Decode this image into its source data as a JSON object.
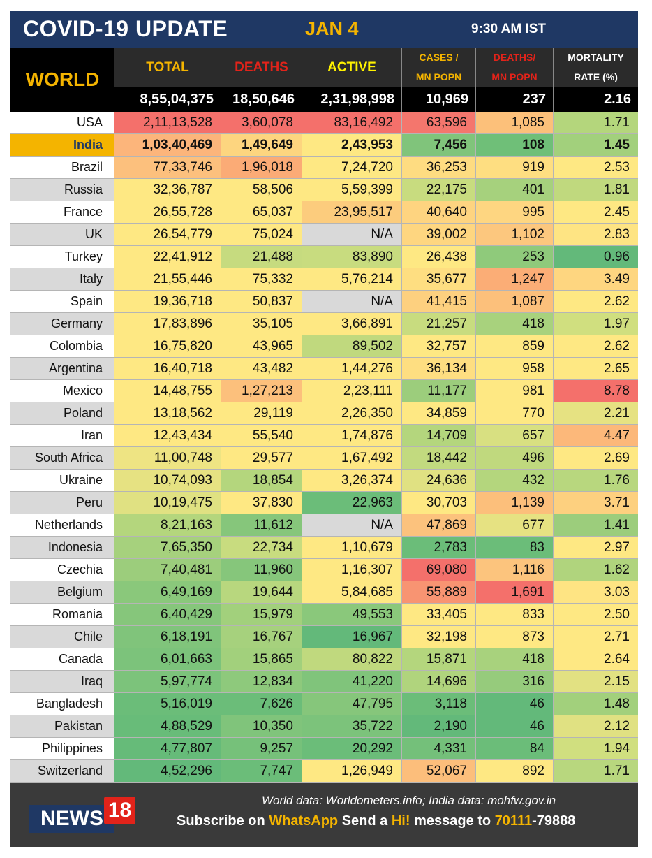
{
  "header": {
    "title": "COVID-19 UPDATE",
    "date": "JAN 4",
    "time": "9:30 AM IST"
  },
  "world": {
    "label": "WORLD",
    "columns": {
      "total": "TOTAL",
      "deaths": "DEATHS",
      "active": "ACTIVE",
      "cases_top": "CASES /",
      "cases_bottom": "MN POPN",
      "deaths_pm_top": "DEATHS/",
      "deaths_pm_bottom": "MN POPN",
      "mortality_top": "MORTALITY",
      "mortality_bottom": "RATE (%)"
    },
    "values": {
      "total": "8,55,04,375",
      "deaths": "18,50,646",
      "active": "2,31,98,998",
      "cases_mn": "10,969",
      "deaths_mn": "237",
      "mortality": "2.16"
    }
  },
  "colors": {
    "title_bg": "#1f3864",
    "accent": "#f4b400",
    "deaths_red": "#e2231a",
    "header_bg": "#000000",
    "footer_bg": "#3a3a3a"
  },
  "rows": [
    {
      "country": "USA",
      "total": "2,11,13,528",
      "deaths": "3,60,078",
      "active": "83,16,492",
      "cases_mn": "63,596",
      "deaths_mn": "1,085",
      "mortality": "1.71",
      "c": [
        "#f4706b",
        "#f4706b",
        "#f4706b",
        "#f4766d",
        "#fcc07a",
        "#b4d67c"
      ]
    },
    {
      "country": "India",
      "total": "1,03,40,469",
      "deaths": "1,49,649",
      "active": "2,43,953",
      "cases_mn": "7,456",
      "deaths_mn": "108",
      "mortality": "1.45",
      "c": [
        "#fcb57b",
        "#fdd57f",
        "#fee883",
        "#80c47b",
        "#6fbf78",
        "#a2d07c"
      ],
      "highlight": true
    },
    {
      "country": "Brazil",
      "total": "77,33,746",
      "deaths": "1,96,018",
      "active": "7,24,720",
      "cases_mn": "36,253",
      "deaths_mn": "919",
      "mortality": "2.53",
      "c": [
        "#fcc07d",
        "#fbab76",
        "#fee883",
        "#fedc81",
        "#fede81",
        "#fee883"
      ]
    },
    {
      "country": "Russia",
      "total": "32,36,787",
      "deaths": "58,506",
      "active": "5,59,399",
      "cases_mn": "22,175",
      "deaths_mn": "401",
      "mortality": "1.81",
      "c": [
        "#fee883",
        "#fee883",
        "#fee883",
        "#c8dc7f",
        "#a6d17d",
        "#c0d97e"
      ]
    },
    {
      "country": "France",
      "total": "26,55,728",
      "deaths": "65,037",
      "active": "23,95,517",
      "cases_mn": "40,640",
      "deaths_mn": "995",
      "mortality": "2.45",
      "c": [
        "#fee883",
        "#fee883",
        "#fccc7d",
        "#fed480",
        "#fed681",
        "#fee883"
      ]
    },
    {
      "country": "UK",
      "total": "26,54,779",
      "deaths": "75,024",
      "active": "N/A",
      "cases_mn": "39,002",
      "deaths_mn": "1,102",
      "mortality": "2.83",
      "c": [
        "#fee883",
        "#fee883",
        "#d9d9d9",
        "#fed680",
        "#fcc77e",
        "#fee483"
      ]
    },
    {
      "country": "Turkey",
      "total": "22,41,912",
      "deaths": "21,488",
      "active": "83,890",
      "cases_mn": "26,438",
      "deaths_mn": "253",
      "mortality": "0.96",
      "c": [
        "#fee883",
        "#c6db7f",
        "#c8dc7f",
        "#fee883",
        "#8fca7b",
        "#63b97a"
      ]
    },
    {
      "country": "Italy",
      "total": "21,55,446",
      "deaths": "75,332",
      "active": "5,76,214",
      "cases_mn": "35,677",
      "deaths_mn": "1,247",
      "mortality": "3.49",
      "c": [
        "#fee883",
        "#fee883",
        "#fee883",
        "#fede81",
        "#fbad76",
        "#fed680"
      ]
    },
    {
      "country": "Spain",
      "total": "19,36,718",
      "deaths": "50,837",
      "active": "N/A",
      "cases_mn": "41,415",
      "deaths_mn": "1,087",
      "mortality": "2.62",
      "c": [
        "#fee883",
        "#fee883",
        "#d9d9d9",
        "#fdd07f",
        "#fcc07b",
        "#fee883"
      ]
    },
    {
      "country": "Germany",
      "total": "17,83,896",
      "deaths": "35,105",
      "active": "3,66,891",
      "cases_mn": "21,257",
      "deaths_mn": "418",
      "mortality": "1.97",
      "c": [
        "#fee883",
        "#fee883",
        "#fee883",
        "#c8dc7f",
        "#a8d27d",
        "#d0df7f"
      ]
    },
    {
      "country": "Colombia",
      "total": "16,75,820",
      "deaths": "43,965",
      "active": "89,502",
      "cases_mn": "32,757",
      "deaths_mn": "859",
      "mortality": "2.62",
      "c": [
        "#fee883",
        "#fee883",
        "#c0d97e",
        "#fee883",
        "#fee883",
        "#fee883"
      ]
    },
    {
      "country": "Argentina",
      "total": "16,40,718",
      "deaths": "43,482",
      "active": "1,44,276",
      "cases_mn": "36,134",
      "deaths_mn": "958",
      "mortality": "2.65",
      "c": [
        "#fee883",
        "#fee883",
        "#fee883",
        "#fede81",
        "#fee883",
        "#fee883"
      ]
    },
    {
      "country": "Mexico",
      "total": "14,48,755",
      "deaths": "1,27,213",
      "active": "2,23,111",
      "cases_mn": "11,177",
      "deaths_mn": "981",
      "mortality": "8.78",
      "c": [
        "#fee883",
        "#fcc07c",
        "#fee883",
        "#9ccd7c",
        "#fee883",
        "#f4706b"
      ]
    },
    {
      "country": "Poland",
      "total": "13,18,562",
      "deaths": "29,119",
      "active": "2,26,350",
      "cases_mn": "34,859",
      "deaths_mn": "770",
      "mortality": "2.21",
      "c": [
        "#fee883",
        "#fee883",
        "#fee883",
        "#fee883",
        "#fee883",
        "#e6e282"
      ]
    },
    {
      "country": "Iran",
      "total": "12,43,434",
      "deaths": "55,540",
      "active": "1,74,876",
      "cases_mn": "14,709",
      "deaths_mn": "657",
      "mortality": "4.47",
      "c": [
        "#fee883",
        "#fee883",
        "#fee883",
        "#b4d67d",
        "#d8e081",
        "#fcb87a"
      ]
    },
    {
      "country": "South Africa",
      "total": "11,00,748",
      "deaths": "29,577",
      "active": "1,67,492",
      "cases_mn": "18,442",
      "deaths_mn": "496",
      "mortality": "2.69",
      "c": [
        "#eee483",
        "#fee883",
        "#fee883",
        "#c2da7f",
        "#c0d97e",
        "#fee883"
      ]
    },
    {
      "country": "Ukraine",
      "total": "10,74,093",
      "deaths": "18,854",
      "active": "3,26,374",
      "cases_mn": "24,636",
      "deaths_mn": "432",
      "mortality": "1.76",
      "c": [
        "#e6e282",
        "#b4d67d",
        "#fee883",
        "#e0e182",
        "#b4d67d",
        "#b8d77e"
      ]
    },
    {
      "country": "Peru",
      "total": "10,19,475",
      "deaths": "37,830",
      "active": "22,963",
      "cases_mn": "30,703",
      "deaths_mn": "1,139",
      "mortality": "3.71",
      "c": [
        "#e0e182",
        "#fee883",
        "#6bbd79",
        "#fee883",
        "#fcbf7b",
        "#fdd07f"
      ]
    },
    {
      "country": "Netherlands",
      "total": "8,21,163",
      "deaths": "11,612",
      "active": "N/A",
      "cases_mn": "47,869",
      "deaths_mn": "677",
      "mortality": "1.41",
      "c": [
        "#b4d67d",
        "#86c67b",
        "#d9d9d9",
        "#fcc27d",
        "#e6e282",
        "#9ccd7c"
      ]
    },
    {
      "country": "Indonesia",
      "total": "7,65,350",
      "deaths": "22,734",
      "active": "1,10,679",
      "cases_mn": "2,783",
      "deaths_mn": "83",
      "mortality": "2.97",
      "c": [
        "#a6d17d",
        "#c8dc7f",
        "#fee883",
        "#6bbd79",
        "#6bbd79",
        "#fee883"
      ]
    },
    {
      "country": "Czechia",
      "total": "7,40,481",
      "deaths": "11,960",
      "active": "1,16,307",
      "cases_mn": "69,080",
      "deaths_mn": "1,116",
      "mortality": "1.62",
      "c": [
        "#9ccd7c",
        "#86c67b",
        "#fee883",
        "#f4706b",
        "#fcc47d",
        "#b0d47d"
      ]
    },
    {
      "country": "Belgium",
      "total": "6,49,169",
      "deaths": "19,644",
      "active": "5,84,685",
      "cases_mn": "55,889",
      "deaths_mn": "1,691",
      "mortality": "3.03",
      "c": [
        "#8ac87b",
        "#b8d77e",
        "#fee883",
        "#f89472",
        "#f4706b",
        "#fee483"
      ]
    },
    {
      "country": "Romania",
      "total": "6,40,429",
      "deaths": "15,979",
      "active": "49,553",
      "cases_mn": "33,405",
      "deaths_mn": "833",
      "mortality": "2.50",
      "c": [
        "#86c67b",
        "#a2d07c",
        "#8ac87b",
        "#fee883",
        "#fee883",
        "#fee883"
      ]
    },
    {
      "country": "Chile",
      "total": "6,18,191",
      "deaths": "16,767",
      "active": "16,967",
      "cases_mn": "32,198",
      "deaths_mn": "873",
      "mortality": "2.71",
      "c": [
        "#80c47b",
        "#a6d17d",
        "#63b97a",
        "#fee883",
        "#fee883",
        "#fee883"
      ]
    },
    {
      "country": "Canada",
      "total": "6,01,663",
      "deaths": "15,865",
      "active": "80,822",
      "cases_mn": "15,871",
      "deaths_mn": "418",
      "mortality": "2.64",
      "c": [
        "#7cc37b",
        "#a2d07c",
        "#c0d97e",
        "#b4d67d",
        "#a8d27d",
        "#fee883"
      ]
    },
    {
      "country": "Iraq",
      "total": "5,97,774",
      "deaths": "12,834",
      "active": "41,220",
      "cases_mn": "14,696",
      "deaths_mn": "316",
      "mortality": "2.15",
      "c": [
        "#7cc37b",
        "#8ec97c",
        "#80c47b",
        "#b0d47d",
        "#96cb7c",
        "#e2e182"
      ]
    },
    {
      "country": "Bangladesh",
      "total": "5,16,019",
      "deaths": "7,626",
      "active": "47,795",
      "cases_mn": "3,118",
      "deaths_mn": "46",
      "mortality": "1.48",
      "c": [
        "#6bbd79",
        "#6bbd79",
        "#86c67b",
        "#6bbd79",
        "#63b97a",
        "#a2d07c"
      ]
    },
    {
      "country": "Pakistan",
      "total": "4,88,529",
      "deaths": "10,350",
      "active": "35,722",
      "cases_mn": "2,190",
      "deaths_mn": "46",
      "mortality": "2.12",
      "c": [
        "#68bc79",
        "#80c47b",
        "#7cc37b",
        "#63b97a",
        "#63b97a",
        "#e0e182"
      ]
    },
    {
      "country": "Philippines",
      "total": "4,77,807",
      "deaths": "9,257",
      "active": "20,292",
      "cases_mn": "4,331",
      "deaths_mn": "84",
      "mortality": "1.94",
      "c": [
        "#66bb79",
        "#76c17a",
        "#6bbd79",
        "#74c07a",
        "#6bbd79",
        "#d0df7f"
      ]
    },
    {
      "country": "Switzerland",
      "total": "4,52,296",
      "deaths": "7,747",
      "active": "1,26,949",
      "cases_mn": "52,067",
      "deaths_mn": "892",
      "mortality": "1.71",
      "c": [
        "#63b97a",
        "#6bbd79",
        "#fee883",
        "#fcbe7b",
        "#fee883",
        "#b8d77e"
      ]
    }
  ],
  "footer": {
    "logo_text": "NEWS",
    "logo_number": "18",
    "source": "World data: Worldometers.info; India data: mohfw.gov.in",
    "subscribe_1": "Subscribe on ",
    "subscribe_app": "WhatsApp",
    "subscribe_2": " Send a ",
    "subscribe_word": "Hi!",
    "subscribe_3": " message to ",
    "subscribe_number_1": "70111",
    "subscribe_number_2": "-79888"
  }
}
